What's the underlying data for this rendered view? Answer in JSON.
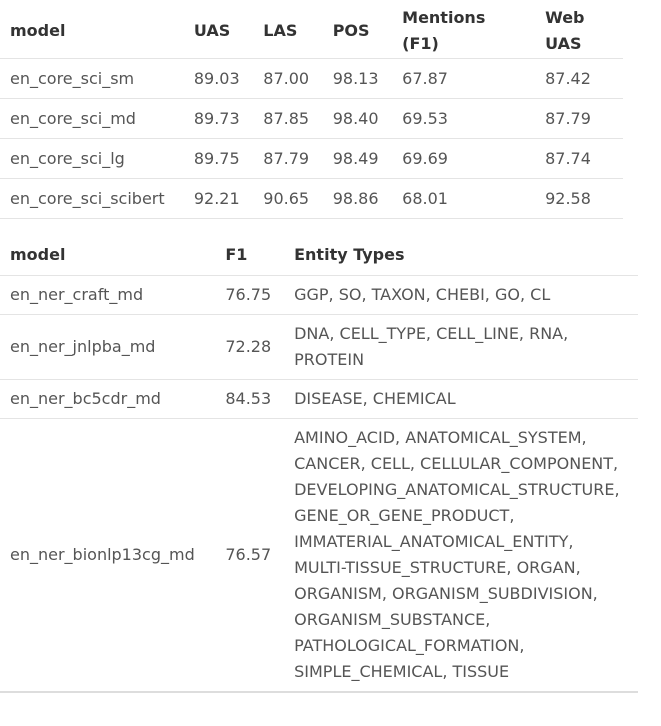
{
  "table1": {
    "headers": [
      "model",
      "UAS",
      "LAS",
      "POS",
      "Mentions (F1)",
      "Web UAS"
    ],
    "rows": [
      [
        "en_core_sci_sm",
        "89.03",
        "87.00",
        "98.13",
        "67.87",
        "87.42"
      ],
      [
        "en_core_sci_md",
        "89.73",
        "87.85",
        "98.40",
        "69.53",
        "87.79"
      ],
      [
        "en_core_sci_lg",
        "89.75",
        "87.79",
        "98.49",
        "69.69",
        "87.74"
      ],
      [
        "en_core_sci_scibert",
        "92.21",
        "90.65",
        "98.86",
        "68.01",
        "92.58"
      ]
    ]
  },
  "table2": {
    "headers": [
      "model",
      "F1",
      "Entity Types"
    ],
    "rows": [
      [
        "en_ner_craft_md",
        "76.75",
        "GGP, SO, TAXON, CHEBI, GO, CL"
      ],
      [
        "en_ner_jnlpba_md",
        "72.28",
        "DNA, CELL_TYPE, CELL_LINE, RNA, PROTEIN"
      ],
      [
        "en_ner_bc5cdr_md",
        "84.53",
        "DISEASE, CHEMICAL"
      ],
      [
        "en_ner_bionlp13cg_md",
        "76.57",
        "AMINO_ACID, ANATOMICAL_SYSTEM, CANCER, CELL, CELLULAR_COMPONENT, DEVELOPING_ANATOMICAL_STRUCTURE, GENE_OR_GENE_PRODUCT, IMMATERIAL_ANATOMICAL_ENTITY, MULTI-TISSUE_STRUCTURE, ORGAN, ORGANISM, ORGANISM_SUBDIVISION, ORGANISM_SUBSTANCE, PATHOLOGICAL_FORMATION, SIMPLE_CHEMICAL, TISSUE"
      ]
    ]
  }
}
